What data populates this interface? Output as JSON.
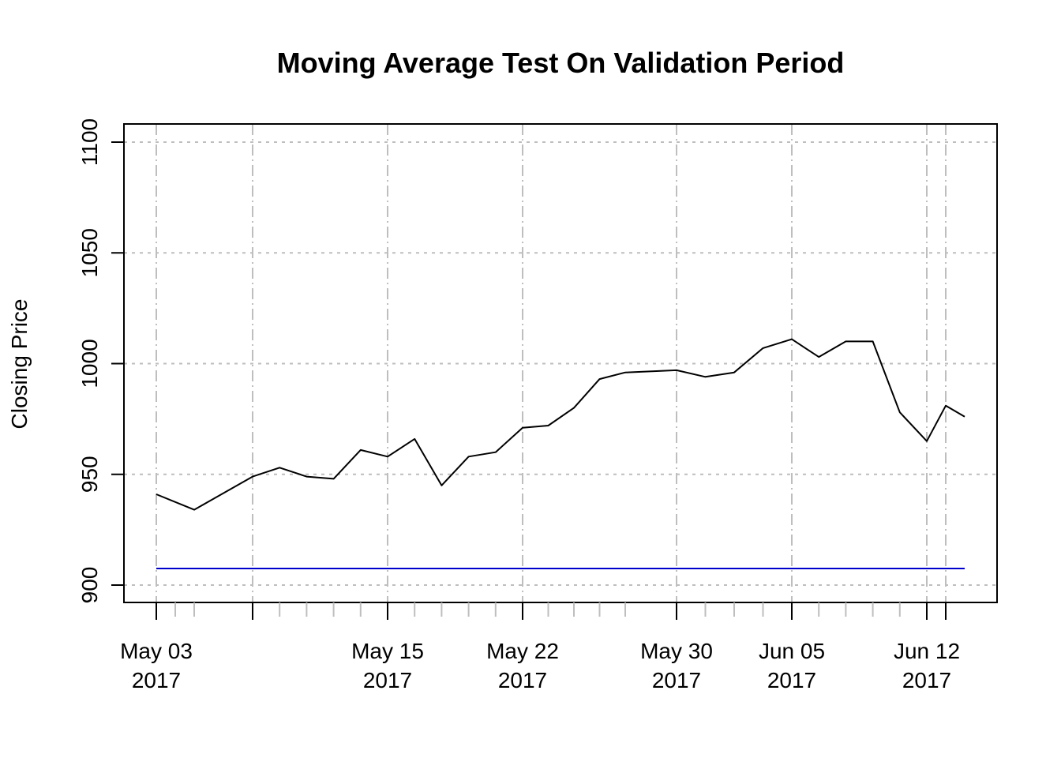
{
  "chart_data": {
    "type": "line",
    "title": "Moving Average Test On Validation Period",
    "xlabel": "",
    "ylabel": "Closing Price",
    "xlim": [
      "2017-05-03",
      "2017-06-13"
    ],
    "ylim": [
      890,
      1110
    ],
    "grid": true,
    "y_ticks": [
      900,
      950,
      1000,
      1050,
      1100
    ],
    "x_ticks": [
      {
        "date": "2017-05-03",
        "line1": "May 03",
        "line2": "2017"
      },
      {
        "date": "2017-05-08",
        "line1": "",
        "line2": ""
      },
      {
        "date": "2017-05-15",
        "line1": "May 15",
        "line2": "2017"
      },
      {
        "date": "2017-05-22",
        "line1": "May 22",
        "line2": "2017"
      },
      {
        "date": "2017-05-30",
        "line1": "May 30",
        "line2": "2017"
      },
      {
        "date": "2017-06-05",
        "line1": "Jun 05",
        "line2": "2017"
      },
      {
        "date": "2017-06-12",
        "line1": "Jun 12",
        "line2": "2017"
      },
      {
        "date": "2017-06-13",
        "line1": "",
        "line2": ""
      }
    ],
    "minor_ticks": [
      "2017-05-04",
      "2017-05-05",
      "2017-05-09",
      "2017-05-10",
      "2017-05-11",
      "2017-05-12",
      "2017-05-16",
      "2017-05-17",
      "2017-05-18",
      "2017-05-19",
      "2017-05-23",
      "2017-05-24",
      "2017-05-25",
      "2017-05-26",
      "2017-05-31",
      "2017-06-01",
      "2017-06-02",
      "2017-06-06",
      "2017-06-07",
      "2017-06-08",
      "2017-06-09"
    ],
    "series": [
      {
        "color": "#000000",
        "points": [
          {
            "x": "2017-05-03",
            "y": 941
          },
          {
            "x": "2017-05-05",
            "y": 934
          },
          {
            "x": "2017-05-08",
            "y": 949
          },
          {
            "x": "2017-05-09",
            "y": 953
          },
          {
            "x": "2017-05-10",
            "y": 949
          },
          {
            "x": "2017-05-11",
            "y": 948
          },
          {
            "x": "2017-05-12",
            "y": 961
          },
          {
            "x": "2017-05-15",
            "y": 958
          },
          {
            "x": "2017-05-16",
            "y": 966
          },
          {
            "x": "2017-05-17",
            "y": 945
          },
          {
            "x": "2017-05-18",
            "y": 958
          },
          {
            "x": "2017-05-19",
            "y": 960
          },
          {
            "x": "2017-05-22",
            "y": 971
          },
          {
            "x": "2017-05-23",
            "y": 972
          },
          {
            "x": "2017-05-24",
            "y": 980
          },
          {
            "x": "2017-05-25",
            "y": 993
          },
          {
            "x": "2017-05-26",
            "y": 996
          },
          {
            "x": "2017-05-30",
            "y": 997
          },
          {
            "x": "2017-05-31",
            "y": 994
          },
          {
            "x": "2017-06-01",
            "y": 996
          },
          {
            "x": "2017-06-02",
            "y": 1007
          },
          {
            "x": "2017-06-05",
            "y": 1011
          },
          {
            "x": "2017-06-06",
            "y": 1003
          },
          {
            "x": "2017-06-07",
            "y": 1010
          },
          {
            "x": "2017-06-08",
            "y": 1010
          },
          {
            "x": "2017-06-09",
            "y": 978
          },
          {
            "x": "2017-06-12",
            "y": 965
          },
          {
            "x": "2017-06-13",
            "y": 981
          },
          {
            "x": "2017-06-14",
            "y": 976
          }
        ]
      },
      {
        "color": "#0000cc",
        "points": [
          {
            "x": "2017-05-03",
            "y": 907.5
          },
          {
            "x": "2017-06-14",
            "y": 907.5
          }
        ]
      }
    ]
  }
}
